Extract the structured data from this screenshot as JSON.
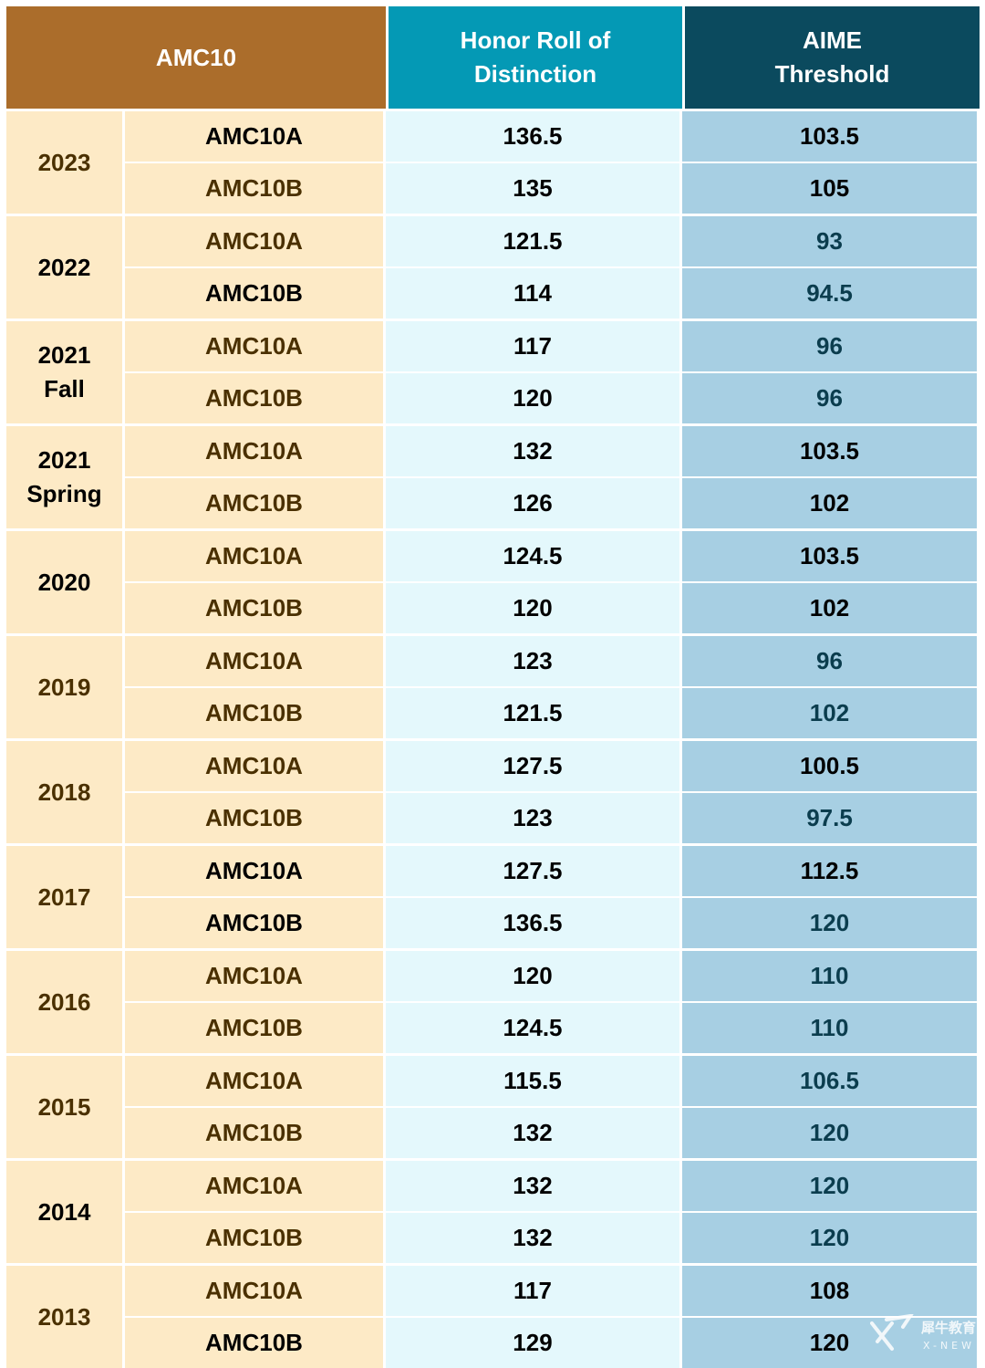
{
  "header": {
    "exam": "AMC10",
    "honor_roll": "Honor Roll of\nDistinction",
    "aime": "AIME\nThreshold"
  },
  "colors": {
    "header_exam_bg": "#ab6d2b",
    "header_honor_bg": "#0499b5",
    "header_aime_bg": "#0b4a5e",
    "exam_col_bg": "#fdeac6",
    "honor_col_bg": "#e4f8fc",
    "aime_col_bg": "#a7cfe3",
    "text_dark": "#000000",
    "text_brown": "#4a3000",
    "text_teal": "#0b3d4e"
  },
  "rows": [
    {
      "year": "2023",
      "year_color": "#4a3000",
      "entries": [
        {
          "exam": "AMC10A",
          "honor": "136.5",
          "aime": "103.5",
          "exam_color": "#000000",
          "aime_color": "#000000"
        },
        {
          "exam": "AMC10B",
          "honor": "135",
          "aime": "105",
          "exam_color": "#4a3000",
          "aime_color": "#000000"
        }
      ]
    },
    {
      "year": "2022",
      "year_color": "#000000",
      "entries": [
        {
          "exam": "AMC10A",
          "honor": "121.5",
          "aime": "93",
          "exam_color": "#4a3000",
          "aime_color": "#0b3d4e"
        },
        {
          "exam": "AMC10B",
          "honor": "114",
          "aime": "94.5",
          "exam_color": "#000000",
          "aime_color": "#0b3d4e"
        }
      ]
    },
    {
      "year": "2021\nFall",
      "year_color": "#000000",
      "entries": [
        {
          "exam": "AMC10A",
          "honor": "117",
          "aime": "96",
          "exam_color": "#4a3000",
          "aime_color": "#0b3d4e"
        },
        {
          "exam": "AMC10B",
          "honor": "120",
          "aime": "96",
          "exam_color": "#4a3000",
          "aime_color": "#0b3d4e"
        }
      ]
    },
    {
      "year": "2021\nSpring",
      "year_color": "#000000",
      "entries": [
        {
          "exam": "AMC10A",
          "honor": "132",
          "aime": "103.5",
          "exam_color": "#4a3000",
          "aime_color": "#000000"
        },
        {
          "exam": "AMC10B",
          "honor": "126",
          "aime": "102",
          "exam_color": "#4a3000",
          "aime_color": "#000000"
        }
      ]
    },
    {
      "year": "2020",
      "year_color": "#000000",
      "entries": [
        {
          "exam": "AMC10A",
          "honor": "124.5",
          "aime": "103.5",
          "exam_color": "#4a3000",
          "aime_color": "#000000"
        },
        {
          "exam": "AMC10B",
          "honor": "120",
          "aime": "102",
          "exam_color": "#4a3000",
          "aime_color": "#000000"
        }
      ]
    },
    {
      "year": "2019",
      "year_color": "#4a3000",
      "entries": [
        {
          "exam": "AMC10A",
          "honor": "123",
          "aime": "96",
          "exam_color": "#4a3000",
          "aime_color": "#0b3d4e"
        },
        {
          "exam": "AMC10B",
          "honor": "121.5",
          "aime": "102",
          "exam_color": "#4a3000",
          "aime_color": "#0b3d4e"
        }
      ]
    },
    {
      "year": "2018",
      "year_color": "#4a3000",
      "entries": [
        {
          "exam": "AMC10A",
          "honor": "127.5",
          "aime": "100.5",
          "exam_color": "#4a3000",
          "aime_color": "#000000"
        },
        {
          "exam": "AMC10B",
          "honor": "123",
          "aime": "97.5",
          "exam_color": "#4a3000",
          "aime_color": "#0b3d4e"
        }
      ]
    },
    {
      "year": "2017",
      "year_color": "#4a3000",
      "entries": [
        {
          "exam": "AMC10A",
          "honor": "127.5",
          "aime": "112.5",
          "exam_color": "#000000",
          "aime_color": "#000000"
        },
        {
          "exam": "AMC10B",
          "honor": "136.5",
          "aime": "120",
          "exam_color": "#000000",
          "aime_color": "#0b3d4e"
        }
      ]
    },
    {
      "year": "2016",
      "year_color": "#4a3000",
      "entries": [
        {
          "exam": "AMC10A",
          "honor": "120",
          "aime": "110",
          "exam_color": "#4a3000",
          "aime_color": "#0b3d4e"
        },
        {
          "exam": "AMC10B",
          "honor": "124.5",
          "aime": "110",
          "exam_color": "#4a3000",
          "aime_color": "#0b3d4e"
        }
      ]
    },
    {
      "year": "2015",
      "year_color": "#4a3000",
      "entries": [
        {
          "exam": "AMC10A",
          "honor": "115.5",
          "aime": "106.5",
          "exam_color": "#4a3000",
          "aime_color": "#0b3d4e"
        },
        {
          "exam": "AMC10B",
          "honor": "132",
          "aime": "120",
          "exam_color": "#4a3000",
          "aime_color": "#0b3d4e"
        }
      ]
    },
    {
      "year": "2014",
      "year_color": "#000000",
      "entries": [
        {
          "exam": "AMC10A",
          "honor": "132",
          "aime": "120",
          "exam_color": "#4a3000",
          "aime_color": "#0b3d4e"
        },
        {
          "exam": "AMC10B",
          "honor": "132",
          "aime": "120",
          "exam_color": "#4a3000",
          "aime_color": "#0b3d4e"
        }
      ]
    },
    {
      "year": "2013",
      "year_color": "#4a3000",
      "entries": [
        {
          "exam": "AMC10A",
          "honor": "117",
          "aime": "108",
          "exam_color": "#4a3000",
          "aime_color": "#000000"
        },
        {
          "exam": "AMC10B",
          "honor": "129",
          "aime": "120",
          "exam_color": "#000000",
          "aime_color": "#000000"
        }
      ]
    }
  ],
  "watermark": {
    "text": "犀牛教育",
    "subtext": "X-NEW"
  }
}
